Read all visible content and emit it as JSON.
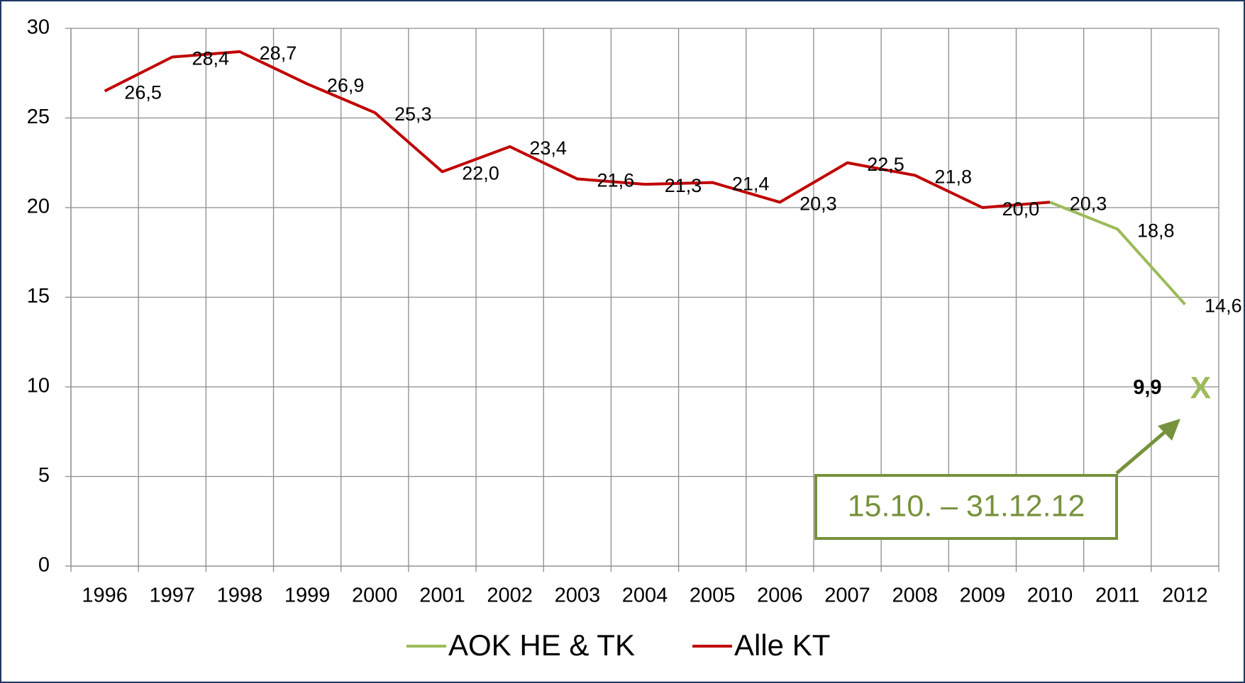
{
  "chart_data": {
    "type": "line",
    "categories": [
      "1996",
      "1997",
      "1998",
      "1999",
      "2000",
      "2001",
      "2002",
      "2003",
      "2004",
      "2005",
      "2006",
      "2007",
      "2008",
      "2009",
      "2010",
      "2011",
      "2012"
    ],
    "series": [
      {
        "name": "AOK HE & TK",
        "color": "#9bbb59",
        "values": [
          null,
          null,
          null,
          null,
          null,
          null,
          null,
          null,
          null,
          null,
          null,
          null,
          null,
          null,
          20.3,
          18.8,
          14.6
        ],
        "value_labels": [
          null,
          null,
          null,
          null,
          null,
          null,
          null,
          null,
          null,
          null,
          null,
          null,
          null,
          null,
          null,
          "18,8",
          "14,6"
        ]
      },
      {
        "name": "Alle KT",
        "color": "#c00000",
        "values": [
          26.5,
          28.4,
          28.7,
          26.9,
          25.3,
          22.0,
          23.4,
          21.6,
          21.3,
          21.4,
          20.3,
          22.5,
          21.8,
          20.0,
          20.3,
          null,
          null
        ],
        "value_labels": [
          "26,5",
          "28,4",
          "28,7",
          "26,9",
          "25,3",
          "22,0",
          "23,4",
          "21,6",
          "21,3",
          "21,4",
          "20,3",
          "22,5",
          "21,8",
          "20,0",
          "20,3",
          null,
          null
        ]
      }
    ],
    "annotation": {
      "text": "15.10. – 31.12.12",
      "x": "2012",
      "value": 9.9,
      "value_label": "9,9",
      "marker": "X"
    },
    "ylim": [
      0,
      30
    ],
    "yticks": [
      0,
      5,
      10,
      15,
      20,
      25,
      30
    ],
    "grid": true,
    "legend": "bottom"
  }
}
